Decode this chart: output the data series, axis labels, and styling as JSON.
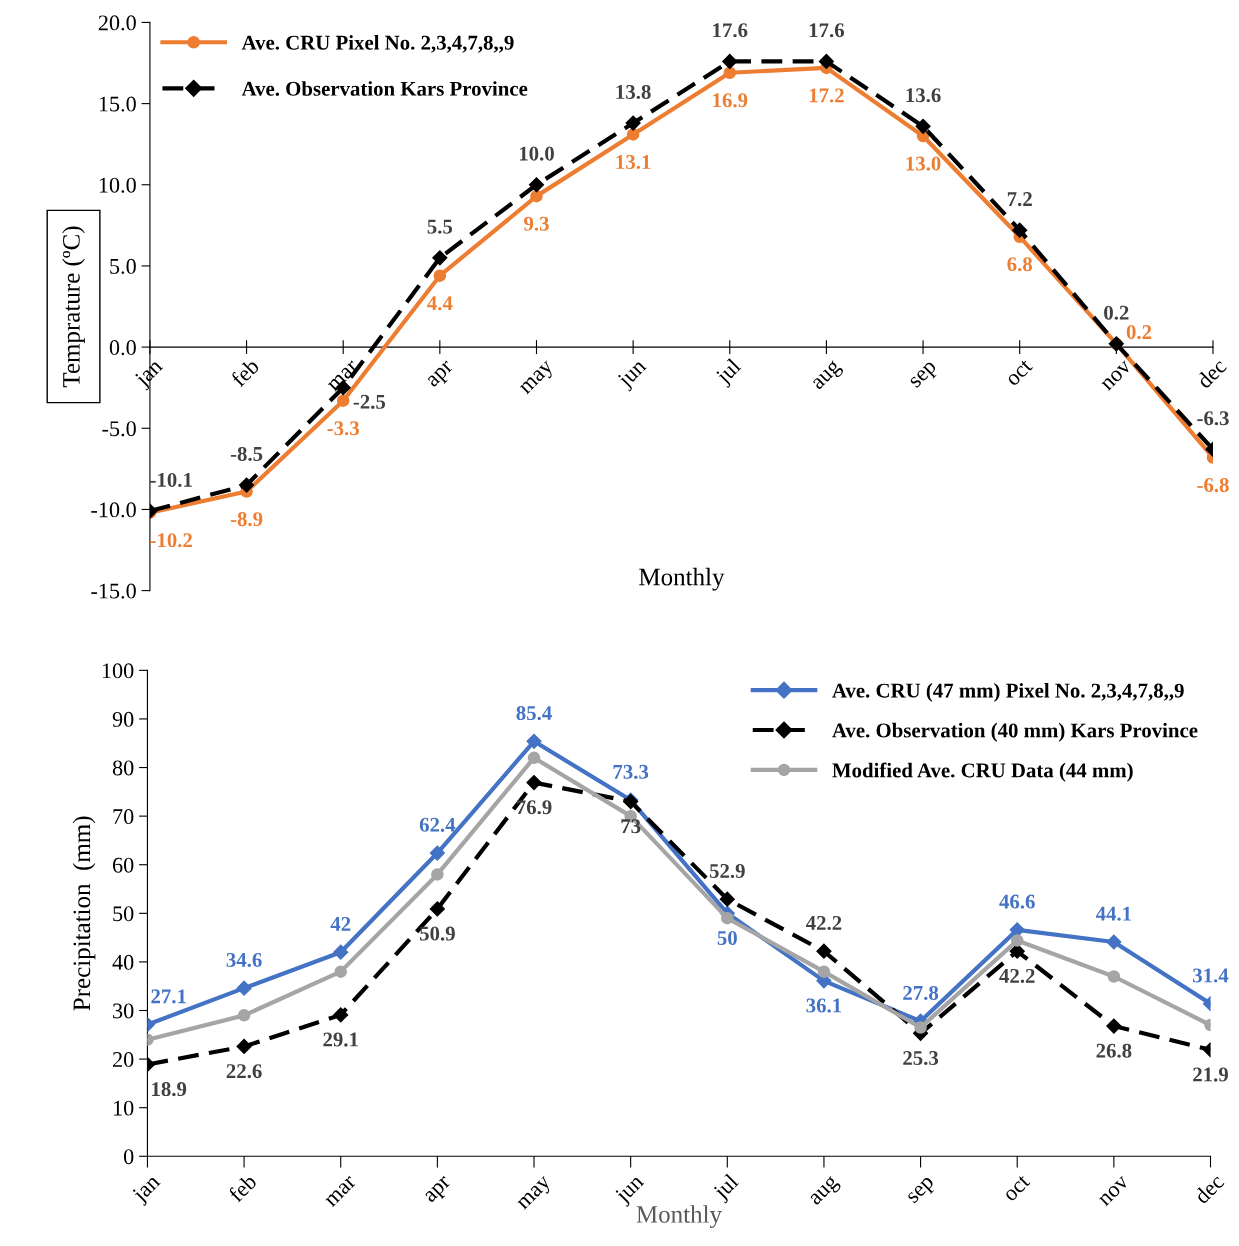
{
  "chart_data": [
    {
      "type": "line",
      "ylabel": "Temprature (ºC)",
      "xlabel": "Monthly",
      "legend": "top left",
      "grid": false,
      "categories": [
        "jan",
        "feb",
        "mar",
        "apr",
        "may",
        "jun",
        "jul",
        "aug",
        "sep",
        "oct",
        "nov",
        "dec"
      ],
      "ylim": [
        -15,
        20
      ],
      "yticks": [
        {
          "value": -15,
          "label": "-15.0"
        },
        {
          "value": -10,
          "label": "-10.0"
        },
        {
          "value": -5,
          "label": "-5.0"
        },
        {
          "value": 0,
          "label": "0.0"
        },
        {
          "value": 5,
          "label": "5.0"
        },
        {
          "value": 10,
          "label": "10.0"
        },
        {
          "value": 15,
          "label": "15.0"
        },
        {
          "value": 20,
          "label": "20.0"
        }
      ],
      "series": [
        {
          "name": "Ave. CRU Pixel No. 2,3,4,7,8,,9",
          "color": "#ed7d31",
          "marker": "circle",
          "line_style": "solid",
          "values": [
            -10.2,
            -8.9,
            -3.3,
            4.4,
            9.3,
            13.1,
            16.9,
            17.2,
            13.0,
            6.8,
            0.2,
            -6.8
          ],
          "value_labels": [
            "-10.2",
            "-8.9",
            "-3.3",
            "4.4",
            "9.3",
            "13.1",
            "16.9",
            "17.2",
            "13.0",
            "6.8",
            "0.2",
            "-6.8"
          ]
        },
        {
          "name": "Ave. Observation Kars Province",
          "color": "#000000",
          "marker": "diamond",
          "line_style": "dashed",
          "values": [
            -10.1,
            -8.5,
            -2.5,
            5.5,
            10.0,
            13.8,
            17.6,
            17.6,
            13.6,
            7.2,
            0.2,
            -6.3
          ],
          "value_labels": [
            "-10.1",
            "-8.5",
            "-2.5",
            "5.5",
            "10.0",
            "13.8",
            "17.6",
            "17.6",
            "13.6",
            "7.2",
            "0.2",
            "-6.3"
          ]
        }
      ]
    },
    {
      "type": "line",
      "ylabel": "Precipitation  (mm)",
      "xlabel": "Monthly",
      "legend": "top right",
      "grid": false,
      "categories": [
        "jan",
        "feb",
        "mar",
        "apr",
        "may",
        "jun",
        "jul",
        "aug",
        "sep",
        "oct",
        "nov",
        "dec"
      ],
      "ylim": [
        0,
        100
      ],
      "yticks": [
        0,
        10,
        20,
        30,
        40,
        50,
        60,
        70,
        80,
        90,
        100
      ],
      "series": [
        {
          "name": "Ave. CRU (47 mm) Pixel No. 2,3,4,7,8,,9",
          "color": "#4472c4",
          "marker": "diamond",
          "line_style": "solid",
          "values": [
            27.1,
            34.6,
            42,
            62.4,
            85.4,
            73.3,
            50,
            36.1,
            27.8,
            46.6,
            44.1,
            31.4
          ],
          "value_labels": [
            "27.1",
            "34.6",
            "42",
            "62.4",
            "85.4",
            "73.3",
            "50",
            "36.1",
            "27.8",
            "46.6",
            "44.1",
            "31.4"
          ]
        },
        {
          "name": "Ave. Observation (40 mm) Kars Province",
          "color": "#000000",
          "marker": "diamond",
          "line_style": "dashed",
          "values": [
            18.9,
            22.6,
            29.1,
            50.9,
            76.9,
            73,
            52.9,
            42.2,
            25.3,
            42.2,
            26.8,
            21.9
          ],
          "value_labels": [
            "18.9",
            "22.6",
            "29.1",
            "50.9",
            "76.9",
            "73",
            "52.9",
            "42.2",
            "25.3",
            "42.2",
            "26.8",
            "21.9"
          ]
        },
        {
          "name": "Modified Ave. CRU Data (44 mm)",
          "color": "#a5a5a5",
          "marker": "circle",
          "line_style": "solid",
          "values": [
            24,
            29,
            38,
            58,
            82,
            70,
            49,
            38,
            26.5,
            44.4,
            37,
            27
          ]
        }
      ]
    }
  ]
}
